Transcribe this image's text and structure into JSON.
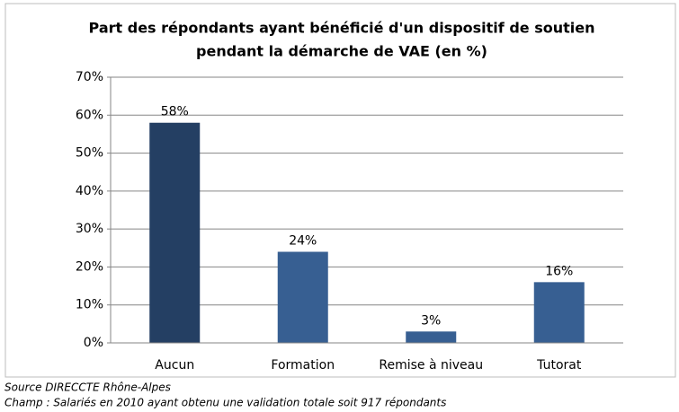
{
  "chart_data": {
    "type": "bar",
    "title": [
      "Part des répondants ayant bénéficié d'un dispositif de soutien",
      "pendant la démarche de VAE (en %)"
    ],
    "categories": [
      "Aucun",
      "Formation",
      "Remise à niveau",
      "Tutorat"
    ],
    "values": [
      58,
      24,
      3,
      16
    ],
    "value_labels": [
      "58%",
      "24%",
      "3%",
      "16%"
    ],
    "colors": [
      "#243f63",
      "#375f92",
      "#375f92",
      "#375f92"
    ],
    "ylim": [
      0,
      70
    ],
    "yticks": [
      {
        "value": 0,
        "label": "0%"
      },
      {
        "value": 10,
        "label": "10%"
      },
      {
        "value": 20,
        "label": "20%"
      },
      {
        "value": 30,
        "label": "30%"
      },
      {
        "value": 40,
        "label": "40%"
      },
      {
        "value": 50,
        "label": "50%"
      },
      {
        "value": 60,
        "label": "60%"
      },
      {
        "value": 70,
        "label": "70%"
      }
    ],
    "grid": true,
    "notes": [
      "Source DIRECCTE Rhône-Alpes",
      "Champ : Salariés en 2010 ayant obtenu une validation totale soit 917 répondants"
    ]
  }
}
